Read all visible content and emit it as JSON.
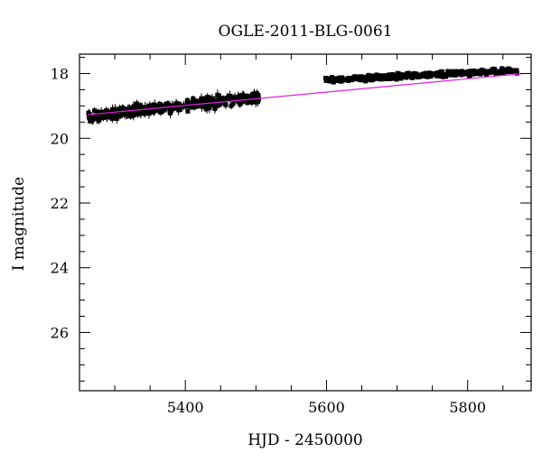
{
  "chart_data": {
    "type": "scatter",
    "title": "OGLE-2011-BLG-0061",
    "xlabel": "HJD - 2450000",
    "ylabel": "I magnitude",
    "xlim": [
      5250,
      5890
    ],
    "ylim": [
      27.8,
      17.4
    ],
    "y_inverted": true,
    "x_ticks": [
      5400,
      5600,
      5800
    ],
    "x_tick_labels": [
      "5400",
      "5600",
      "5800"
    ],
    "y_ticks": [
      18,
      20,
      22,
      24,
      26
    ],
    "y_tick_labels": [
      "18",
      "20",
      "22",
      "24",
      "26"
    ],
    "grid": false,
    "legend": "none",
    "colors": {
      "points": "#000000",
      "model": "#e020e0"
    },
    "series": [
      {
        "kind": "points_with_errorbars",
        "segments": [
          {
            "x_range": [
              5262,
              5505
            ],
            "y_start": 19.32,
            "y_end": 18.72,
            "scatter": 0.18,
            "typical_error": 0.12
          },
          {
            "x_range": [
              5598,
              5870
            ],
            "y_start": 18.2,
            "y_end": 17.9,
            "scatter": 0.08,
            "typical_error": 0.06
          }
        ]
      },
      {
        "kind": "model_line",
        "x": [
          5262,
          5878
        ],
        "y": [
          19.27,
          18.0
        ]
      }
    ]
  }
}
